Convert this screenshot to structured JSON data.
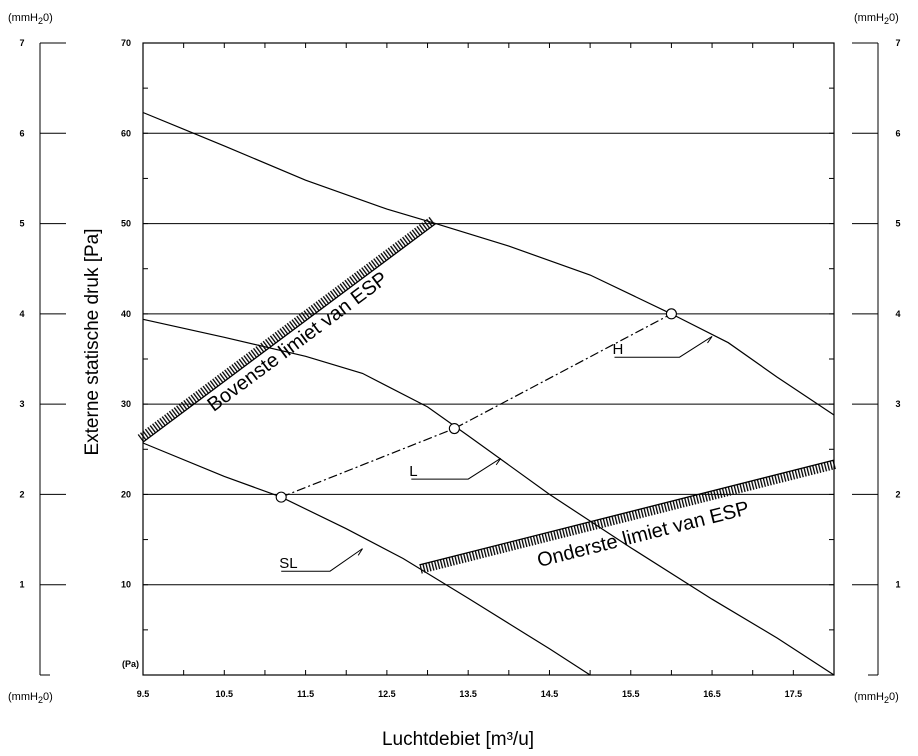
{
  "chart_data": {
    "type": "line",
    "xlabel": "Luchtdebiet [m³/u]",
    "ylabel": "Externe statische druk [Pa]",
    "pa_unit_label": "(Pa)",
    "mm_unit_label_top_left": "(mmH20)",
    "mm_unit_label_top_right": "(mmH20)",
    "mm_unit_label_bottom_left": "(mmH20)",
    "mm_unit_label_bottom_right": "(mmH20)",
    "xlim": [
      9.5,
      18.0
    ],
    "ylim": [
      0,
      70
    ],
    "x_ticks": [
      {
        "value": 9.5,
        "label": "9.5"
      },
      {
        "value": 10.5,
        "label": "10.5"
      },
      {
        "value": 11.5,
        "label": "11.5"
      },
      {
        "value": 12.5,
        "label": "12.5"
      },
      {
        "value": 13.5,
        "label": "13.5"
      },
      {
        "value": 14.5,
        "label": "14.5"
      },
      {
        "value": 15.5,
        "label": "15.5"
      },
      {
        "value": 16.5,
        "label": "16.5"
      },
      {
        "value": 17.5,
        "label": "17.5"
      }
    ],
    "y_ticks": [
      {
        "value": 10,
        "label": "10"
      },
      {
        "value": 20,
        "label": "20"
      },
      {
        "value": 30,
        "label": "30"
      },
      {
        "value": 40,
        "label": "40"
      },
      {
        "value": 50,
        "label": "50"
      },
      {
        "value": 60,
        "label": "60"
      },
      {
        "value": 70,
        "label": "70"
      }
    ],
    "mm_ticks": [
      {
        "value": 1,
        "label": "1"
      },
      {
        "value": 2,
        "label": "2"
      },
      {
        "value": 3,
        "label": "3"
      },
      {
        "value": 4,
        "label": "4"
      },
      {
        "value": 5,
        "label": "5"
      },
      {
        "value": 6,
        "label": "6"
      },
      {
        "value": 7,
        "label": "7"
      }
    ],
    "grid_lines_y": [
      10,
      20,
      30,
      40,
      50,
      60
    ],
    "series": [
      {
        "name": "H",
        "x": [
          9.5,
          10.5,
          11.5,
          12.5,
          13.1,
          14.0,
          15.0,
          16.0,
          16.7,
          17.3,
          18.0
        ],
        "y": [
          62.3,
          58.6,
          54.8,
          51.6,
          50.0,
          47.5,
          44.3,
          40.0,
          36.8,
          33.0,
          28.8
        ]
      },
      {
        "name": "L",
        "x": [
          9.5,
          10.5,
          11.5,
          12.2,
          13.0,
          13.5,
          14.5,
          15.5,
          16.5,
          17.3,
          18.0
        ],
        "y": [
          39.4,
          37.4,
          35.3,
          33.4,
          29.7,
          26.5,
          20.0,
          14.1,
          8.4,
          4.1,
          0.0
        ]
      },
      {
        "name": "SL",
        "x": [
          9.5,
          10.5,
          11.2,
          12.0,
          12.7,
          13.5,
          14.0,
          14.5,
          15.0
        ],
        "y": [
          25.7,
          22.0,
          19.7,
          16.2,
          12.9,
          8.5,
          5.7,
          2.9,
          0.0
        ]
      },
      {
        "name": "",
        "x": [
          11.2,
          13.33,
          16.0
        ],
        "y": [
          19.7,
          27.3,
          40.0
        ]
      }
    ],
    "operating_points": [
      {
        "x": 11.2,
        "y": 19.7
      },
      {
        "x": 13.33,
        "y": 27.3
      },
      {
        "x": 16.0,
        "y": 40.0
      }
    ],
    "upper_limit": {
      "label": "Bovenste limiet van ESP",
      "x": [
        9.5,
        13.1
      ],
      "y": [
        25.8,
        50.0
      ]
    },
    "lower_limit": {
      "label": "Onderste limiet van ESP",
      "x": [
        12.9,
        18.0
      ],
      "y": [
        12.2,
        23.8
      ]
    },
    "curve_labels": [
      {
        "text": "H",
        "leader_x": [
          15.3,
          16.1,
          16.5
        ],
        "leader_y": [
          35.2,
          35.2,
          37.5
        ]
      },
      {
        "text": "L",
        "leader_x": [
          12.8,
          13.5,
          13.9
        ],
        "leader_y": [
          21.7,
          21.7,
          24.0
        ]
      },
      {
        "text": "SL",
        "leader_x": [
          11.2,
          11.8,
          12.2
        ],
        "leader_y": [
          11.5,
          11.5,
          14.0
        ]
      }
    ]
  }
}
